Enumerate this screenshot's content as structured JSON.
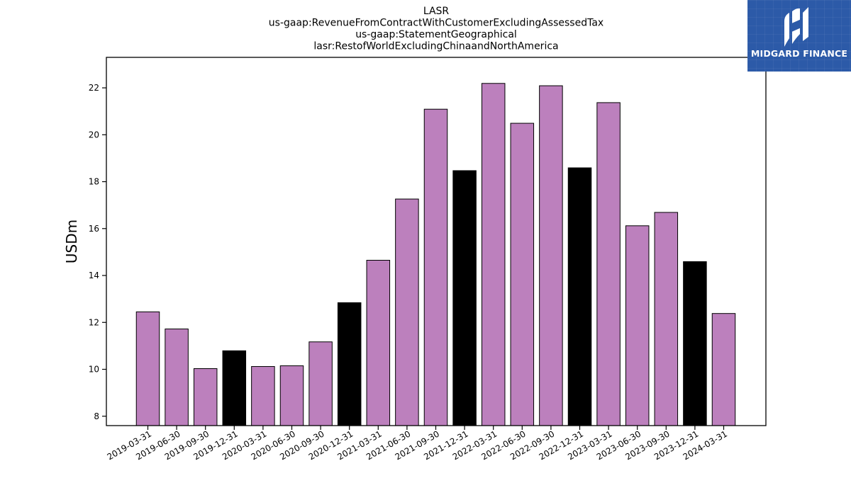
{
  "chart_data": {
    "type": "bar",
    "title_lines": [
      "LASR",
      "us-gaap:RevenueFromContractWithCustomerExcludingAssessedTax",
      "us-gaap:StatementGeographical",
      "lasr:RestofWorldExcludingChinaandNorthAmerica"
    ],
    "ylabel": "USDm",
    "xlabel": "",
    "categories": [
      "2019-03-31",
      "2019-06-30",
      "2019-09-30",
      "2019-12-31",
      "2020-03-31",
      "2020-06-30",
      "2020-09-30",
      "2020-12-31",
      "2021-03-31",
      "2021-06-30",
      "2021-09-30",
      "2021-12-31",
      "2022-03-31",
      "2022-06-30",
      "2022-09-30",
      "2022-12-31",
      "2023-03-31",
      "2023-06-30",
      "2023-09-30",
      "2023-12-31",
      "2024-03-31"
    ],
    "values": [
      12.45,
      11.72,
      10.03,
      10.79,
      10.12,
      10.15,
      11.17,
      12.84,
      14.65,
      17.26,
      21.09,
      18.47,
      22.19,
      20.49,
      22.09,
      18.59,
      21.37,
      16.12,
      16.69,
      14.59,
      12.38
    ],
    "bar_colors": [
      "#bc80bd",
      "#bc80bd",
      "#bc80bd",
      "#000000",
      "#bc80bd",
      "#bc80bd",
      "#bc80bd",
      "#000000",
      "#bc80bd",
      "#bc80bd",
      "#bc80bd",
      "#000000",
      "#bc80bd",
      "#bc80bd",
      "#bc80bd",
      "#000000",
      "#bc80bd",
      "#bc80bd",
      "#bc80bd",
      "#000000",
      "#bc80bd"
    ],
    "yticks": [
      8,
      10,
      12,
      14,
      16,
      18,
      20,
      22
    ],
    "ylim": [
      7.6,
      23.3
    ],
    "grid": false,
    "legend": "none"
  },
  "logo": {
    "text": "MIDGARD FINANCE",
    "mark_icon": "midgard-logo-icon"
  }
}
